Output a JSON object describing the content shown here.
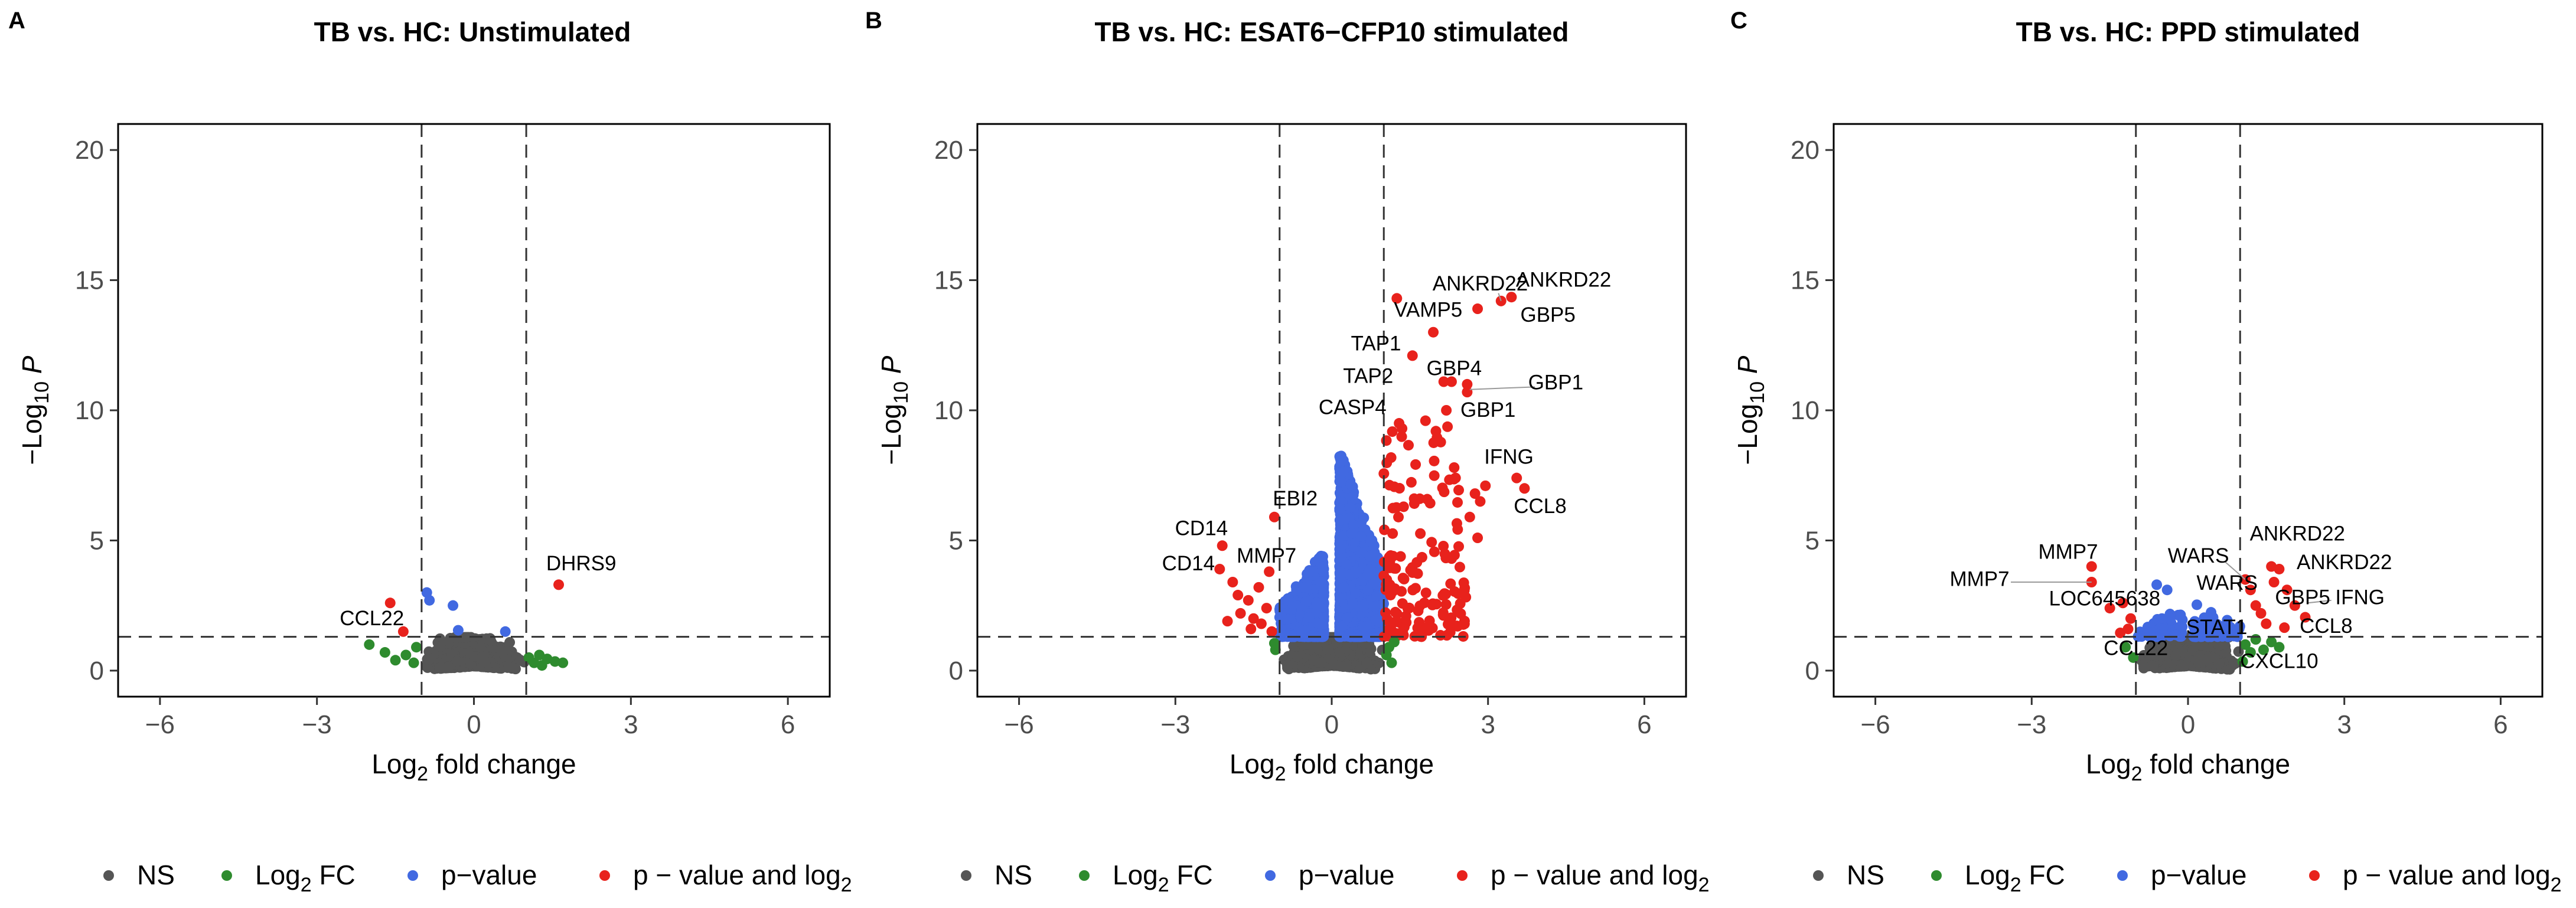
{
  "axes": {
    "x_label_pre": "Log",
    "x_label_sub": "2",
    "x_label_post": " fold change",
    "y_label_pre": "−Log",
    "y_label_sub": "10",
    "y_label_post": "P",
    "x_ticks": [
      "−6",
      "−3",
      "0",
      "3",
      "6"
    ],
    "y_ticks": [
      "0",
      "5",
      "10",
      "15",
      "20"
    ]
  },
  "legend": {
    "items": [
      {
        "label": "NS",
        "color": "#555555"
      },
      {
        "label": "Log",
        "sub": "2",
        "post": " FC",
        "color": "#2e8b2e"
      },
      {
        "label": "p−value",
        "color": "#4169e1"
      },
      {
        "label": "p − value and log",
        "sub": "2",
        "post": "",
        "color": "#e8221c"
      }
    ]
  },
  "colors": {
    "ns": "#555555",
    "fc": "#2e8b2e",
    "pv": "#4169e1",
    "both": "#e8221c"
  },
  "chart_data": [
    {
      "type": "scatter",
      "letter": "A",
      "title": "TB vs. HC: Unstimulated",
      "xlabel": "Log2 fold change",
      "ylabel": "−Log10 P",
      "xlim": [
        -6.8,
        6.8
      ],
      "ylim": [
        -1,
        21
      ],
      "vlines": [
        -1,
        1
      ],
      "hline": 1.3,
      "cloud": {
        "center": 0,
        "width": 0.95,
        "height": 1.15,
        "peak_y": 0.65
      },
      "points": [
        {
          "x": -1.6,
          "y": 2.6,
          "c": "both"
        },
        {
          "x": -1.35,
          "y": 1.5,
          "c": "both"
        },
        {
          "x": -2.0,
          "y": 1.0,
          "c": "fc"
        },
        {
          "x": -1.7,
          "y": 0.7,
          "c": "fc"
        },
        {
          "x": -1.5,
          "y": 0.4,
          "c": "fc"
        },
        {
          "x": -1.3,
          "y": 0.6,
          "c": "fc"
        },
        {
          "x": -1.15,
          "y": 0.3,
          "c": "fc"
        },
        {
          "x": -1.1,
          "y": 0.9,
          "c": "fc"
        },
        {
          "x": -0.9,
          "y": 3.0,
          "c": "pv"
        },
        {
          "x": -0.85,
          "y": 2.7,
          "c": "pv"
        },
        {
          "x": -0.4,
          "y": 2.5,
          "c": "pv"
        },
        {
          "x": -0.3,
          "y": 1.55,
          "c": "pv"
        },
        {
          "x": 0.6,
          "y": 1.5,
          "c": "pv"
        },
        {
          "x": 1.05,
          "y": 0.5,
          "c": "fc"
        },
        {
          "x": 1.15,
          "y": 0.3,
          "c": "fc"
        },
        {
          "x": 1.25,
          "y": 0.6,
          "c": "fc"
        },
        {
          "x": 1.3,
          "y": 0.2,
          "c": "fc"
        },
        {
          "x": 1.4,
          "y": 0.45,
          "c": "fc"
        },
        {
          "x": 1.55,
          "y": 0.35,
          "c": "fc"
        },
        {
          "x": 1.7,
          "y": 0.3,
          "c": "fc"
        },
        {
          "x": 1.62,
          "y": 3.3,
          "c": "both"
        }
      ],
      "labels": [
        {
          "text": "DHRS9",
          "x": 2.05,
          "y": 3.85,
          "anchor": "middle"
        },
        {
          "text": "CCL22",
          "x": -1.95,
          "y": 1.75,
          "anchor": "middle"
        }
      ],
      "leaders": []
    },
    {
      "type": "scatter",
      "letter": "B",
      "title": "TB vs. HC: ESAT6−CFP10 stimulated",
      "xlabel": "Log2 fold change",
      "ylabel": "−Log10 P",
      "xlim": [
        -6.8,
        6.8
      ],
      "ylim": [
        -1,
        21
      ],
      "vlines": [
        -1,
        1
      ],
      "hline": 1.3,
      "cloud": {
        "center": 0,
        "width": 0.95,
        "height": 1.3,
        "peak_y": 0.7
      },
      "points": [
        {
          "x": -2.1,
          "y": 4.8,
          "c": "both"
        },
        {
          "x": -2.15,
          "y": 3.9,
          "c": "both"
        },
        {
          "x": -1.9,
          "y": 3.4,
          "c": "both"
        },
        {
          "x": -1.8,
          "y": 2.9,
          "c": "both"
        },
        {
          "x": -1.6,
          "y": 2.7,
          "c": "both"
        },
        {
          "x": -1.75,
          "y": 2.2,
          "c": "both"
        },
        {
          "x": -1.5,
          "y": 2.0,
          "c": "both"
        },
        {
          "x": -1.55,
          "y": 1.6,
          "c": "both"
        },
        {
          "x": -1.35,
          "y": 1.8,
          "c": "both"
        },
        {
          "x": -1.25,
          "y": 2.4,
          "c": "both"
        },
        {
          "x": -1.15,
          "y": 1.5,
          "c": "both"
        },
        {
          "x": -1.4,
          "y": 3.2,
          "c": "both"
        },
        {
          "x": -1.1,
          "y": 5.9,
          "c": "both"
        },
        {
          "x": -1.2,
          "y": 3.8,
          "c": "both"
        },
        {
          "x": -2.0,
          "y": 1.9,
          "c": "both"
        },
        {
          "x": -1.08,
          "y": 0.8,
          "c": "fc"
        },
        {
          "x": -1.1,
          "y": 1.05,
          "c": "fc"
        },
        {
          "x": 1.05,
          "y": 0.6,
          "c": "fc"
        },
        {
          "x": 1.1,
          "y": 0.9,
          "c": "fc"
        },
        {
          "x": 1.15,
          "y": 0.3,
          "c": "fc"
        },
        {
          "x": 1.2,
          "y": 1.1,
          "c": "fc"
        },
        {
          "x": 1.25,
          "y": 14.3,
          "c": "both"
        },
        {
          "x": 3.25,
          "y": 14.2,
          "c": "both"
        },
        {
          "x": 3.45,
          "y": 14.35,
          "c": "both"
        },
        {
          "x": 2.8,
          "y": 13.9,
          "c": "both"
        },
        {
          "x": 1.95,
          "y": 13.0,
          "c": "both"
        },
        {
          "x": 1.55,
          "y": 12.1,
          "c": "both"
        },
        {
          "x": 2.3,
          "y": 11.1,
          "c": "both"
        },
        {
          "x": 2.15,
          "y": 11.1,
          "c": "both"
        },
        {
          "x": 2.6,
          "y": 11.0,
          "c": "both"
        },
        {
          "x": 2.6,
          "y": 10.7,
          "c": "both"
        },
        {
          "x": 2.2,
          "y": 10.0,
          "c": "both"
        },
        {
          "x": 3.55,
          "y": 7.4,
          "c": "both"
        },
        {
          "x": 3.7,
          "y": 7.0,
          "c": "both"
        },
        {
          "x": 2.75,
          "y": 6.8,
          "c": "both"
        },
        {
          "x": 2.85,
          "y": 6.5,
          "c": "both"
        },
        {
          "x": 2.95,
          "y": 7.1,
          "c": "both"
        },
        {
          "x": 2.65,
          "y": 5.9,
          "c": "both"
        },
        {
          "x": 2.8,
          "y": 5.1,
          "c": "both"
        },
        {
          "x": 2.35,
          "y": 7.8,
          "c": "both"
        },
        {
          "x": 2.0,
          "y": 9.2,
          "c": "both"
        },
        {
          "x": 1.8,
          "y": 9.6,
          "c": "both"
        },
        {
          "x": 1.35,
          "y": 9.3,
          "c": "both"
        }
      ],
      "clusters": [
        {
          "x_min": -1.0,
          "x_max": -0.15,
          "y_min": 1.3,
          "y_max": 5.0,
          "count": 650,
          "c": "pv",
          "skew_center": true
        },
        {
          "x_min": 0.15,
          "x_max": 1.0,
          "y_min": 1.3,
          "y_max": 9.5,
          "count": 900,
          "c": "pv",
          "skew_center": true
        },
        {
          "x_min": 1.0,
          "x_max": 2.6,
          "y_min": 1.3,
          "y_max": 9.5,
          "count": 150,
          "c": "both",
          "skew_center": false
        }
      ],
      "labels": [
        {
          "text": "ANKRD22",
          "x": 2.85,
          "y": 14.6,
          "anchor": "middle"
        },
        {
          "text": "ANKRD22",
          "x": 4.45,
          "y": 14.75,
          "anchor": "middle"
        },
        {
          "text": "VAMP5",
          "x": 1.85,
          "y": 13.6,
          "anchor": "middle"
        },
        {
          "text": "GBP5",
          "x": 4.15,
          "y": 13.4,
          "anchor": "middle"
        },
        {
          "text": "TAP1",
          "x": 0.85,
          "y": 12.3,
          "anchor": "middle"
        },
        {
          "text": "GBP4",
          "x": 2.35,
          "y": 11.35,
          "anchor": "middle"
        },
        {
          "text": "TAP2",
          "x": 0.7,
          "y": 11.05,
          "anchor": "middle"
        },
        {
          "text": "GBP1",
          "x": 4.3,
          "y": 10.8,
          "anchor": "middle"
        },
        {
          "text": "CASP4",
          "x": 0.4,
          "y": 9.85,
          "anchor": "middle"
        },
        {
          "text": "GBP1",
          "x": 3.0,
          "y": 9.75,
          "anchor": "middle"
        },
        {
          "text": "IFNG",
          "x": 3.4,
          "y": 7.95,
          "anchor": "middle"
        },
        {
          "text": "CCL8",
          "x": 4.0,
          "y": 6.05,
          "anchor": "middle"
        },
        {
          "text": "EBI2",
          "x": -0.7,
          "y": 6.35,
          "anchor": "middle"
        },
        {
          "text": "CD14",
          "x": -2.5,
          "y": 5.2,
          "anchor": "middle"
        },
        {
          "text": "MMP7",
          "x": -1.25,
          "y": 4.15,
          "anchor": "middle"
        },
        {
          "text": "CD14",
          "x": -2.75,
          "y": 3.85,
          "anchor": "middle"
        }
      ],
      "leaders": [
        {
          "x1": 3.2,
          "y1": 14.5,
          "x2": 3.25,
          "y2": 14.2
        },
        {
          "x1": 3.9,
          "y1": 10.9,
          "x2": 2.65,
          "y2": 10.8
        }
      ]
    },
    {
      "type": "scatter",
      "letter": "C",
      "title": "TB vs. HC: PPD stimulated",
      "xlabel": "Log2 fold change",
      "ylabel": "−Log10 P",
      "xlim": [
        -6.8,
        6.8
      ],
      "ylim": [
        -1,
        21
      ],
      "vlines": [
        -1,
        1
      ],
      "hline": 1.3,
      "cloud": {
        "center": 0,
        "width": 0.95,
        "height": 1.2,
        "peak_y": 0.65
      },
      "points": [
        {
          "x": -1.85,
          "y": 4.0,
          "c": "both"
        },
        {
          "x": -1.85,
          "y": 3.4,
          "c": "both"
        },
        {
          "x": -1.5,
          "y": 2.4,
          "c": "both"
        },
        {
          "x": -1.25,
          "y": 2.6,
          "c": "both"
        },
        {
          "x": -1.1,
          "y": 2.0,
          "c": "both"
        },
        {
          "x": -1.15,
          "y": 1.6,
          "c": "both"
        },
        {
          "x": -1.3,
          "y": 1.45,
          "c": "both"
        },
        {
          "x": -1.2,
          "y": 0.9,
          "c": "fc"
        },
        {
          "x": -1.05,
          "y": 0.5,
          "c": "fc"
        },
        {
          "x": -0.6,
          "y": 3.3,
          "c": "pv"
        },
        {
          "x": -0.4,
          "y": 3.1,
          "c": "pv"
        },
        {
          "x": -0.5,
          "y": 2.0,
          "c": "pv"
        },
        {
          "x": 1.1,
          "y": 3.5,
          "c": "both"
        },
        {
          "x": 1.2,
          "y": 3.1,
          "c": "both"
        },
        {
          "x": 1.3,
          "y": 2.5,
          "c": "both"
        },
        {
          "x": 1.4,
          "y": 2.2,
          "c": "both"
        },
        {
          "x": 1.5,
          "y": 1.8,
          "c": "both"
        },
        {
          "x": 1.6,
          "y": 4.0,
          "c": "both"
        },
        {
          "x": 1.75,
          "y": 3.9,
          "c": "both"
        },
        {
          "x": 1.65,
          "y": 3.4,
          "c": "both"
        },
        {
          "x": 1.9,
          "y": 3.1,
          "c": "both"
        },
        {
          "x": 2.05,
          "y": 2.5,
          "c": "both"
        },
        {
          "x": 2.25,
          "y": 2.05,
          "c": "both"
        },
        {
          "x": 1.85,
          "y": 1.65,
          "c": "both"
        },
        {
          "x": 1.1,
          "y": 1.0,
          "c": "fc"
        },
        {
          "x": 1.2,
          "y": 0.7,
          "c": "fc"
        },
        {
          "x": 1.3,
          "y": 1.2,
          "c": "fc"
        },
        {
          "x": 1.45,
          "y": 0.8,
          "c": "fc"
        },
        {
          "x": 1.6,
          "y": 1.1,
          "c": "fc"
        },
        {
          "x": 1.75,
          "y": 0.9,
          "c": "fc"
        },
        {
          "x": 1.05,
          "y": 0.35,
          "c": "fc"
        }
      ],
      "clusters": [
        {
          "x_min": -1.0,
          "x_max": -0.1,
          "y_min": 1.3,
          "y_max": 2.6,
          "count": 55,
          "c": "pv",
          "skew_center": true
        },
        {
          "x_min": 0.1,
          "x_max": 1.0,
          "y_min": 1.3,
          "y_max": 2.8,
          "count": 70,
          "c": "pv",
          "skew_center": true
        }
      ],
      "labels": [
        {
          "text": "MMP7",
          "x": -2.3,
          "y": 4.3,
          "anchor": "middle"
        },
        {
          "text": "WARS",
          "x": 0.2,
          "y": 4.15,
          "anchor": "middle"
        },
        {
          "text": "ANKRD22",
          "x": 2.1,
          "y": 5.0,
          "anchor": "middle"
        },
        {
          "text": "ANKRD22",
          "x": 3.0,
          "y": 3.9,
          "anchor": "middle"
        },
        {
          "text": "MMP7",
          "x": -4.0,
          "y": 3.25,
          "anchor": "middle"
        },
        {
          "text": "WARS",
          "x": 0.75,
          "y": 3.1,
          "anchor": "middle"
        },
        {
          "text": "LOC645638",
          "x": -1.6,
          "y": 2.5,
          "anchor": "middle"
        },
        {
          "text": "GBP5",
          "x": 2.2,
          "y": 2.55,
          "anchor": "middle"
        },
        {
          "text": "IFNG",
          "x": 3.3,
          "y": 2.55,
          "anchor": "middle"
        },
        {
          "text": "STAT1",
          "x": 0.55,
          "y": 1.4,
          "anchor": "middle"
        },
        {
          "text": "CCL8",
          "x": 2.65,
          "y": 1.45,
          "anchor": "middle"
        },
        {
          "text": "CCL22",
          "x": -1.0,
          "y": 0.6,
          "anchor": "middle"
        },
        {
          "text": "CXCL10",
          "x": 1.75,
          "y": 0.1,
          "anchor": "middle"
        }
      ],
      "leaders": [
        {
          "x1": 0.7,
          "y1": 4.2,
          "x2": 1.1,
          "y2": 3.5
        },
        {
          "x1": -3.4,
          "y1": 3.4,
          "x2": -1.85,
          "y2": 3.4
        },
        {
          "x1": 2.75,
          "y1": 2.7,
          "x2": 2.3,
          "y2": 2.6
        }
      ]
    }
  ]
}
